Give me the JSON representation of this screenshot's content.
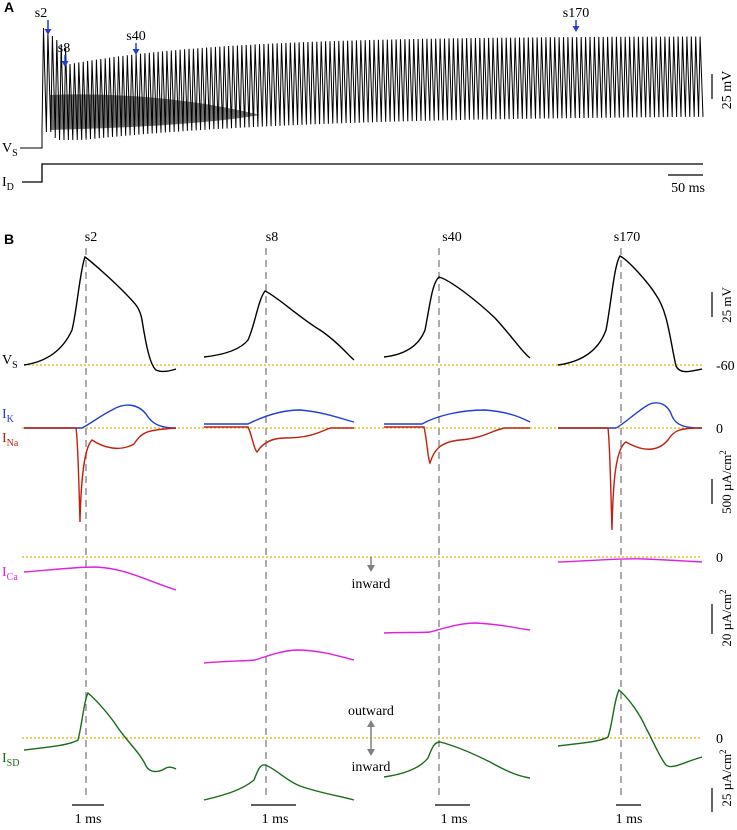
{
  "colors": {
    "black": "#000000",
    "blue": "#1f3fd6",
    "red": "#c2200f",
    "magenta": "#e020e0",
    "green": "#1a6b1a",
    "gold": "#e8b000",
    "gray": "#808080",
    "arrow_blue": "#1f3fd6"
  },
  "panel_a": {
    "label": "A",
    "trace_vs": "V",
    "trace_vs_sub": "S",
    "trace_id": "I",
    "trace_id_sub": "D",
    "scale_v": "25 mV",
    "scale_t": "50 ms",
    "markers": [
      "s2",
      "s8",
      "s40",
      "s170"
    ]
  },
  "panel_b": {
    "label": "B",
    "columns": [
      "s2",
      "s8",
      "s40",
      "s170"
    ],
    "rows": {
      "vs": {
        "name": "V",
        "sub": "S",
        "right_value": "-60",
        "scale": "25 mV"
      },
      "ik": {
        "name": "I",
        "sub": "K"
      },
      "ina": {
        "name": "I",
        "sub": "Na",
        "right_value": "0",
        "scale": "500 µA/cm",
        "scale_sup": "2"
      },
      "ica": {
        "name": "I",
        "sub": "Ca",
        "right_value": "0",
        "scale": "20 µA/cm",
        "scale_sup": "2"
      },
      "isd": {
        "name": "I",
        "sub": "SD",
        "right_value": "0",
        "scale": "25 µA/cm",
        "scale_sup": "2"
      }
    },
    "annotations": {
      "inward_top": "inward",
      "outward": "outward",
      "inward_bottom": "inward"
    },
    "time_scale": "1 ms"
  },
  "chart_data": {
    "type": "line",
    "title": "",
    "panel_a": {
      "description_series": [
        "V_S spike train",
        "I_D step"
      ],
      "spike_markers": [
        "s2",
        "s8",
        "s40",
        "s170"
      ],
      "scale_bars": {
        "voltage_mV": 25,
        "time_ms": 50
      }
    },
    "panel_b": {
      "spikes": [
        "s2",
        "s8",
        "s40",
        "s170"
      ],
      "traces": [
        "V_S",
        "I_K",
        "I_Na",
        "I_Ca",
        "I_SD"
      ],
      "reference_levels": {
        "V_S": -60,
        "I_K": 0,
        "I_Na": 0,
        "I_Ca": 0,
        "I_SD": 0
      },
      "scale_bars": {
        "V_S_mV": 25,
        "I_Na_uA_per_cm2": 500,
        "I_Ca_uA_per_cm2": 20,
        "I_SD_uA_per_cm2": 25,
        "time_ms": 1
      }
    }
  }
}
